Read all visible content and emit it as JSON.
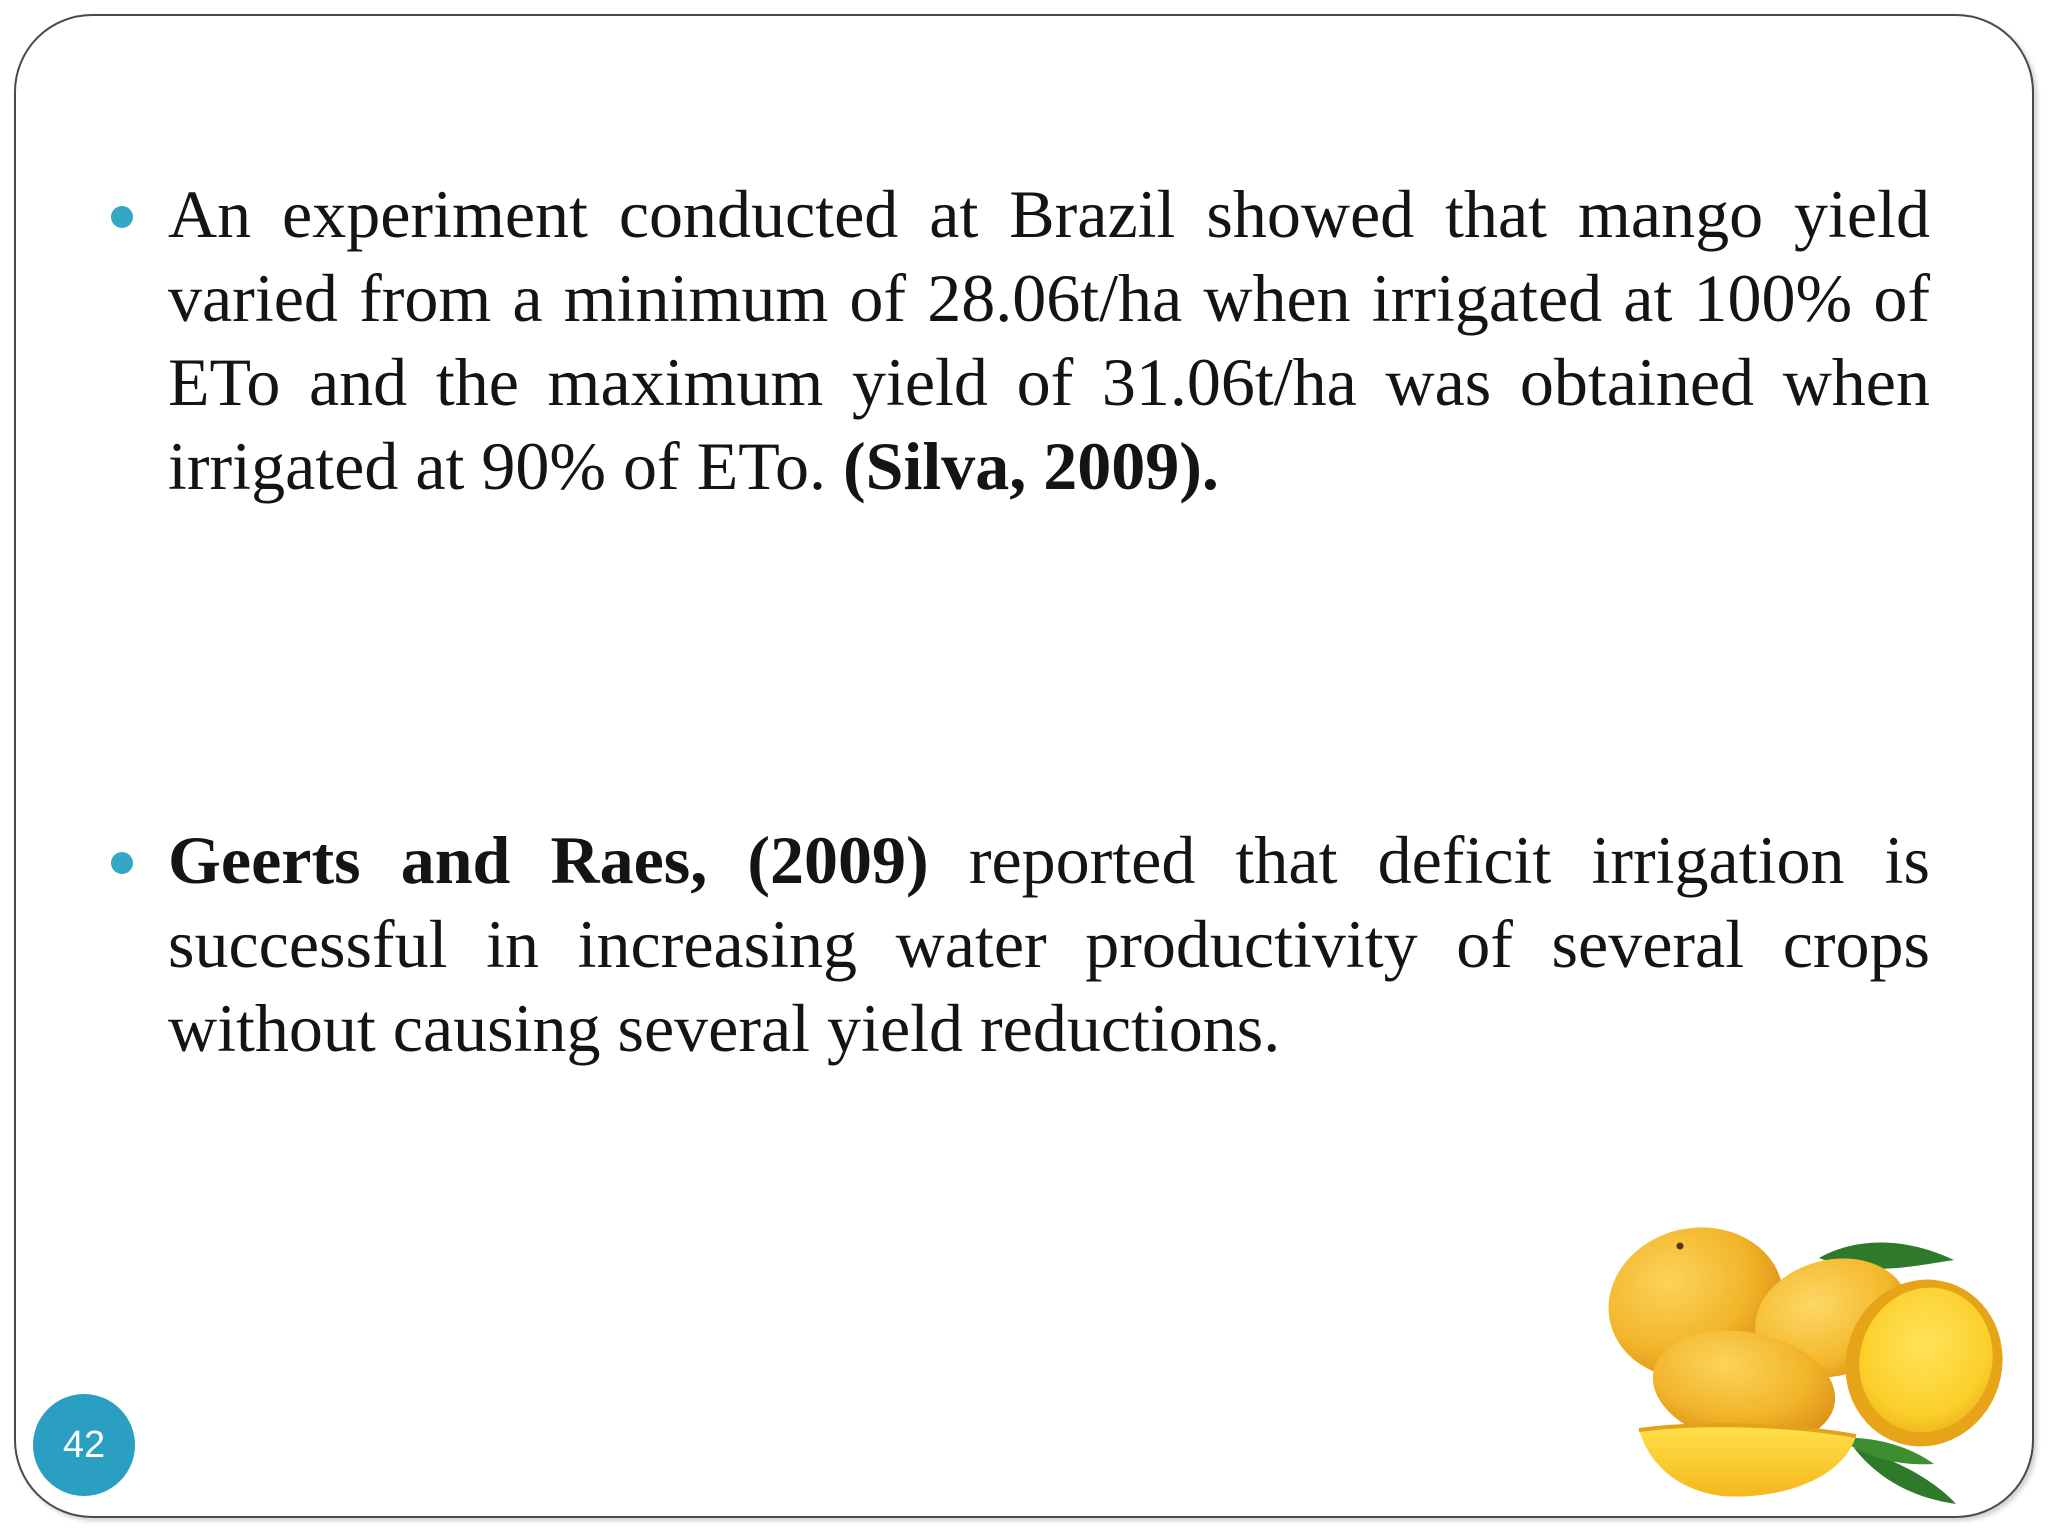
{
  "slide": {
    "page_number": "42",
    "bullets": [
      {
        "text": "An experiment conducted at Brazil showed that mango yield varied from a minimum of 28.06t/ha when irrigated at 100% of ETo and the maximum yield of 31.06t/ha was obtained when irrigated at 90% of ETo. ",
        "citation": "(Silva, 2009)."
      },
      {
        "citation": "Geerts and Raes, (2009)",
        "text": " reported that deficit irrigation is successful in increasing water productivity of several crops without causing several yield reductions."
      }
    ],
    "image_icon": "mango-fruits-icon",
    "colors": {
      "bullet": "#35a6c4",
      "badge": "#2b9fc2",
      "mango_skin": "#f2b52a",
      "mango_flesh": "#fbd233",
      "leaf": "#2f7a2a"
    }
  }
}
